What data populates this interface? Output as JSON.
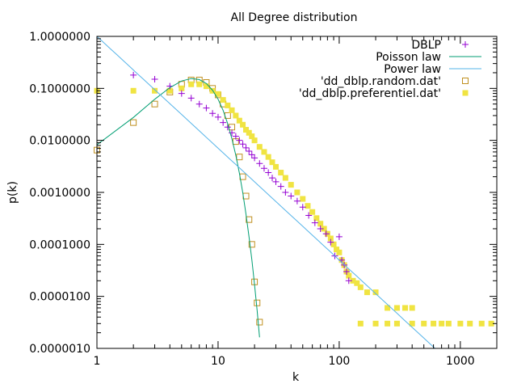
{
  "chart_data": {
    "type": "scatter",
    "title": "All Degree distribution",
    "xlabel": "k",
    "ylabel": "p(k)",
    "xscale": "log",
    "yscale": "log",
    "xlim": [
      1,
      2000
    ],
    "ylim": [
      1e-06,
      1.0
    ],
    "x_ticks": [
      1,
      10,
      100,
      1000
    ],
    "x_tick_labels": [
      "1",
      "10",
      "100",
      "1000"
    ],
    "y_ticks": [
      1e-06,
      1e-05,
      0.0001,
      0.001,
      0.01,
      0.1,
      1.0
    ],
    "y_tick_labels": [
      "0.0000010",
      "0.0000100",
      "0.0001000",
      "0.0010000",
      "0.0100000",
      "0.1000000",
      "1.0000000"
    ],
    "legend_position": "top-right",
    "grid": false,
    "series": [
      {
        "name": "DBLP",
        "marker": "plus",
        "color": "#9400d3",
        "x": [
          2,
          3,
          4,
          5,
          6,
          7,
          8,
          9,
          10,
          11,
          12,
          13,
          14,
          15,
          16,
          17,
          18,
          19,
          20,
          22,
          24,
          26,
          28,
          30,
          33,
          36,
          40,
          45,
          50,
          56,
          63,
          70,
          78,
          85,
          92,
          100,
          105,
          110,
          115,
          120
        ],
        "y": [
          0.18,
          0.15,
          0.11,
          0.08,
          0.065,
          0.05,
          0.042,
          0.033,
          0.028,
          0.022,
          0.018,
          0.014,
          0.012,
          0.01,
          0.0085,
          0.0072,
          0.0062,
          0.0053,
          0.0046,
          0.0036,
          0.0029,
          0.0024,
          0.0019,
          0.0016,
          0.0013,
          0.001,
          0.00085,
          0.00068,
          0.00052,
          0.00036,
          0.00026,
          0.0002,
          0.00016,
          0.00011,
          6e-05,
          0.00014,
          5e-05,
          4e-05,
          3e-05,
          2e-05
        ]
      },
      {
        "name": "Poisson law",
        "style": "line",
        "color": "#009e73",
        "lambda": 6.7,
        "x_range": [
          1,
          22
        ]
      },
      {
        "name": "Power law",
        "style": "line",
        "color": "#56b4e9",
        "coefficient": 1.0,
        "exponent": -2.15,
        "x_range": [
          1,
          2000
        ]
      },
      {
        "name": "'dd_dblp.random.dat'",
        "marker": "open-square",
        "color": "#c09020",
        "x": [
          1,
          2,
          3,
          4,
          5,
          6,
          7,
          8,
          9,
          10,
          11,
          12,
          13,
          14,
          15,
          16,
          17,
          18,
          19,
          20,
          21,
          22
        ],
        "y": [
          0.0065,
          0.022,
          0.05,
          0.085,
          0.12,
          0.145,
          0.145,
          0.13,
          0.1,
          0.075,
          0.05,
          0.03,
          0.018,
          0.0095,
          0.0048,
          0.002,
          0.00085,
          0.0003,
          0.0001,
          1.9e-05,
          7.5e-06,
          3.2e-06
        ]
      },
      {
        "name": "'dd_dblp.preferentiel.dat'",
        "marker": "filled-square",
        "color": "#f0e442",
        "x": [
          1,
          2,
          3,
          4,
          5,
          6,
          7,
          8,
          9,
          10,
          11,
          12,
          13,
          14,
          15,
          16,
          17,
          18,
          19,
          20,
          22,
          24,
          26,
          28,
          30,
          33,
          36,
          40,
          45,
          50,
          55,
          60,
          65,
          70,
          75,
          80,
          85,
          90,
          95,
          100,
          105,
          110,
          115,
          120,
          130,
          140,
          150,
          170,
          200,
          250,
          300,
          350,
          400,
          150,
          200,
          250,
          300,
          400,
          500,
          600,
          700,
          800,
          1000,
          1200,
          1500,
          1800
        ],
        "y": [
          0.09,
          0.09,
          0.09,
          0.09,
          0.1,
          0.12,
          0.12,
          0.11,
          0.09,
          0.078,
          0.06,
          0.047,
          0.038,
          0.03,
          0.024,
          0.02,
          0.016,
          0.014,
          0.012,
          0.01,
          0.0075,
          0.006,
          0.0048,
          0.0038,
          0.0031,
          0.0024,
          0.0019,
          0.0014,
          0.001,
          0.00075,
          0.00055,
          0.00042,
          0.00032,
          0.00025,
          0.0002,
          0.00016,
          0.00013,
          0.0001,
          8e-05,
          7e-05,
          5e-05,
          4e-05,
          3e-05,
          2.5e-05,
          2e-05,
          1.8e-05,
          1.5e-05,
          1.2e-05,
          1.2e-05,
          6e-06,
          6e-06,
          6e-06,
          6e-06,
          3e-06,
          3e-06,
          3e-06,
          3e-06,
          3e-06,
          3e-06,
          3e-06,
          3e-06,
          3e-06,
          3e-06,
          3e-06,
          3e-06,
          3e-06
        ]
      }
    ]
  }
}
